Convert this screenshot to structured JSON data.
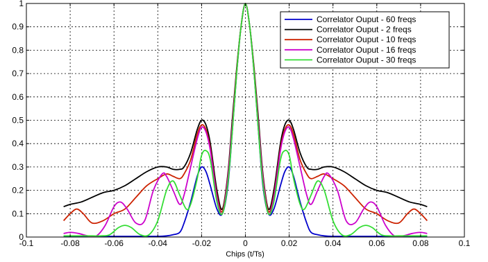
{
  "chart_data": {
    "type": "line",
    "title": "",
    "xlabel": "Chips (t/Ts)",
    "ylabel": "",
    "xlim": [
      -0.1,
      0.1
    ],
    "ylim": [
      0,
      1
    ],
    "xticks": [
      -0.1,
      -0.08,
      -0.06,
      -0.04,
      -0.02,
      0,
      0.02,
      0.04,
      0.06,
      0.08,
      0.1
    ],
    "xtick_labels": [
      "-0.1",
      "-0.08",
      "-0.06",
      "-0.04",
      "-0.02",
      "0",
      "0.02",
      "0.04",
      "0.06",
      "0.08",
      "0.1"
    ],
    "yticks": [
      0,
      0.1,
      0.2,
      0.3,
      0.4,
      0.5,
      0.6,
      0.7,
      0.8,
      0.9,
      1
    ],
    "ytick_labels": [
      "0",
      "0.1",
      "0.2",
      "0.3",
      "0.4",
      "0.5",
      "0.6",
      "0.7",
      "0.8",
      "0.9",
      "1"
    ],
    "grid": true,
    "legend_position": "top-right",
    "symmetric": true,
    "series": [
      {
        "name": "Correlator Ouput - 60 freqs",
        "color": "#0000cc",
        "x": [
          0,
          0.002,
          0.004,
          0.006,
          0.008,
          0.0105,
          0.013,
          0.016,
          0.018,
          0.02,
          0.022,
          0.025,
          0.028,
          0.03,
          0.033,
          0.036,
          0.04,
          0.05,
          0.06,
          0.07,
          0.08,
          0.083
        ],
        "y": [
          1.0,
          0.9,
          0.7,
          0.45,
          0.22,
          0.1,
          0.12,
          0.22,
          0.28,
          0.3,
          0.26,
          0.15,
          0.06,
          0.02,
          0.01,
          0.005,
          0.003,
          0.003,
          0.003,
          0.003,
          0.003,
          0.003
        ]
      },
      {
        "name": "Correlator Ouput - 2 freqs",
        "color": "#000000",
        "x": [
          0,
          0.002,
          0.004,
          0.006,
          0.008,
          0.0105,
          0.013,
          0.016,
          0.018,
          0.02,
          0.022,
          0.025,
          0.028,
          0.03,
          0.033,
          0.036,
          0.04,
          0.045,
          0.05,
          0.055,
          0.06,
          0.065,
          0.07,
          0.075,
          0.08,
          0.083
        ],
        "y": [
          1.0,
          0.9,
          0.72,
          0.5,
          0.27,
          0.12,
          0.2,
          0.4,
          0.48,
          0.5,
          0.46,
          0.36,
          0.3,
          0.29,
          0.29,
          0.3,
          0.3,
          0.28,
          0.25,
          0.22,
          0.2,
          0.19,
          0.17,
          0.15,
          0.14,
          0.13
        ]
      },
      {
        "name": "Correlator Ouput - 10 freqs",
        "color": "#cc2200",
        "x": [
          0,
          0.002,
          0.004,
          0.006,
          0.008,
          0.0105,
          0.013,
          0.016,
          0.018,
          0.02,
          0.022,
          0.025,
          0.028,
          0.03,
          0.033,
          0.036,
          0.04,
          0.045,
          0.05,
          0.055,
          0.06,
          0.065,
          0.07,
          0.074,
          0.077,
          0.08,
          0.083
        ],
        "y": [
          1.0,
          0.9,
          0.71,
          0.48,
          0.26,
          0.11,
          0.18,
          0.38,
          0.46,
          0.48,
          0.44,
          0.33,
          0.27,
          0.25,
          0.26,
          0.27,
          0.25,
          0.22,
          0.17,
          0.12,
          0.1,
          0.07,
          0.06,
          0.1,
          0.12,
          0.1,
          0.07
        ]
      },
      {
        "name": "Correlator Ouput - 16 freqs",
        "color": "#cc00cc",
        "x": [
          0,
          0.002,
          0.004,
          0.006,
          0.008,
          0.0105,
          0.013,
          0.016,
          0.018,
          0.02,
          0.022,
          0.025,
          0.028,
          0.03,
          0.033,
          0.036,
          0.038,
          0.042,
          0.046,
          0.05,
          0.054,
          0.057,
          0.06,
          0.064,
          0.068,
          0.072,
          0.076,
          0.08,
          0.083
        ],
        "y": [
          1.0,
          0.9,
          0.7,
          0.47,
          0.25,
          0.1,
          0.17,
          0.37,
          0.45,
          0.47,
          0.42,
          0.3,
          0.18,
          0.14,
          0.2,
          0.26,
          0.27,
          0.2,
          0.07,
          0.06,
          0.12,
          0.15,
          0.13,
          0.05,
          0.005,
          0.005,
          0.015,
          0.02,
          0.015
        ]
      },
      {
        "name": "Correlator Ouput - 30 freqs",
        "color": "#33dd33",
        "x": [
          0,
          0.002,
          0.004,
          0.006,
          0.008,
          0.0105,
          0.013,
          0.016,
          0.018,
          0.02,
          0.022,
          0.025,
          0.027,
          0.03,
          0.033,
          0.036,
          0.04,
          0.044,
          0.048,
          0.052,
          0.055,
          0.058,
          0.062,
          0.066,
          0.07,
          0.075,
          0.08,
          0.083
        ],
        "y": [
          1.0,
          0.9,
          0.7,
          0.45,
          0.23,
          0.1,
          0.15,
          0.33,
          0.37,
          0.35,
          0.25,
          0.14,
          0.12,
          0.18,
          0.24,
          0.2,
          0.07,
          0.01,
          0.01,
          0.04,
          0.05,
          0.04,
          0.01,
          0.005,
          0.005,
          0.005,
          0.005,
          0.005
        ]
      }
    ]
  }
}
